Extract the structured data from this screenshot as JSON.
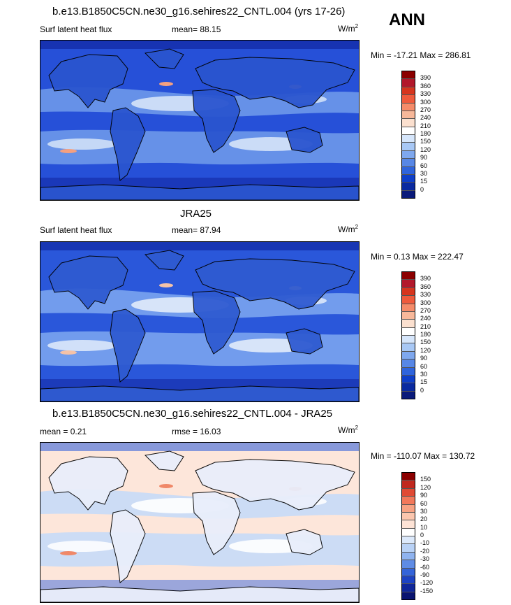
{
  "season": "ANN",
  "panels": [
    {
      "title": "b.e13.B1850C5CN.ne30_g16.sehires22_CNTL.004 (yrs 17-26)",
      "left_label": "Surf latent heat flux",
      "center_label": "mean=  88.15",
      "units": "W/m",
      "units_sup": "2",
      "minmax": "Min = -17.21 Max = 286.81",
      "colorbar": {
        "labels": [
          "390",
          "360",
          "330",
          "300",
          "270",
          "240",
          "210",
          "180",
          "150",
          "120",
          "90",
          "60",
          "30",
          "15",
          "0"
        ],
        "colors": [
          "#8b0000",
          "#b2182b",
          "#d6351e",
          "#ef5a3c",
          "#f58b69",
          "#f7b89a",
          "#fbe0cf",
          "#ffffff",
          "#d6e6fb",
          "#a8c8f5",
          "#7fa8ee",
          "#5787e6",
          "#2f64dc",
          "#0f3fc9",
          "#0a2aa0",
          "#0a1a7a"
        ]
      },
      "map": {
        "base": "#2650d8",
        "band": "#6e98ea",
        "light": "#d6e4f8",
        "hot": "#f4a080",
        "land": "#2a55cf",
        "pole": "#0d1f9a"
      }
    },
    {
      "title": "JRA25",
      "left_label": "Surf latent heat flux",
      "center_label": "mean=  87.94",
      "units": "W/m",
      "units_sup": "2",
      "minmax": "Min =   0.13 Max = 222.47",
      "colorbar": {
        "labels": [
          "390",
          "360",
          "330",
          "300",
          "270",
          "240",
          "210",
          "180",
          "150",
          "120",
          "90",
          "60",
          "30",
          "15",
          "0"
        ],
        "colors": [
          "#8b0000",
          "#b2182b",
          "#d6351e",
          "#ef5a3c",
          "#f58b69",
          "#f7b89a",
          "#fbe0cf",
          "#ffffff",
          "#d6e6fb",
          "#a8c8f5",
          "#7fa8ee",
          "#5787e6",
          "#2f64dc",
          "#0f3fc9",
          "#0a2aa0",
          "#0a1a7a"
        ]
      },
      "map": {
        "base": "#2a57da",
        "band": "#7aa4ee",
        "light": "#e2ecfa",
        "hot": "#f5c2a8",
        "land": "#2f5bd1",
        "pole": "#0d1f9a"
      }
    },
    {
      "title": "b.e13.B1850C5CN.ne30_g16.sehires22_CNTL.004 - JRA25",
      "left_label": "mean =   0.21",
      "center_label": "rmse =  16.03",
      "units": "W/m",
      "units_sup": "2",
      "minmax": "Min = -110.07 Max = 130.72",
      "colorbar": {
        "labels": [
          "150",
          "120",
          "90",
          "60",
          "30",
          "20",
          "10",
          "0",
          "-10",
          "-20",
          "-30",
          "-60",
          "-90",
          "-120",
          "-150"
        ],
        "colors": [
          "#8b0000",
          "#c0281e",
          "#e04a34",
          "#f2785a",
          "#f7a283",
          "#fbc6ae",
          "#fde3d6",
          "#ffffff",
          "#dce9fb",
          "#b9d2f6",
          "#8fb3ef",
          "#5f8ce5",
          "#3464d9",
          "#1d43c4",
          "#10279a",
          "#0a1470"
        ]
      },
      "map": {
        "base": "#fde6da",
        "band": "#c7daf7",
        "light": "#ffffff",
        "hot": "#f08868",
        "land": "#e9eefb",
        "pole": "#3a66dc"
      }
    }
  ]
}
